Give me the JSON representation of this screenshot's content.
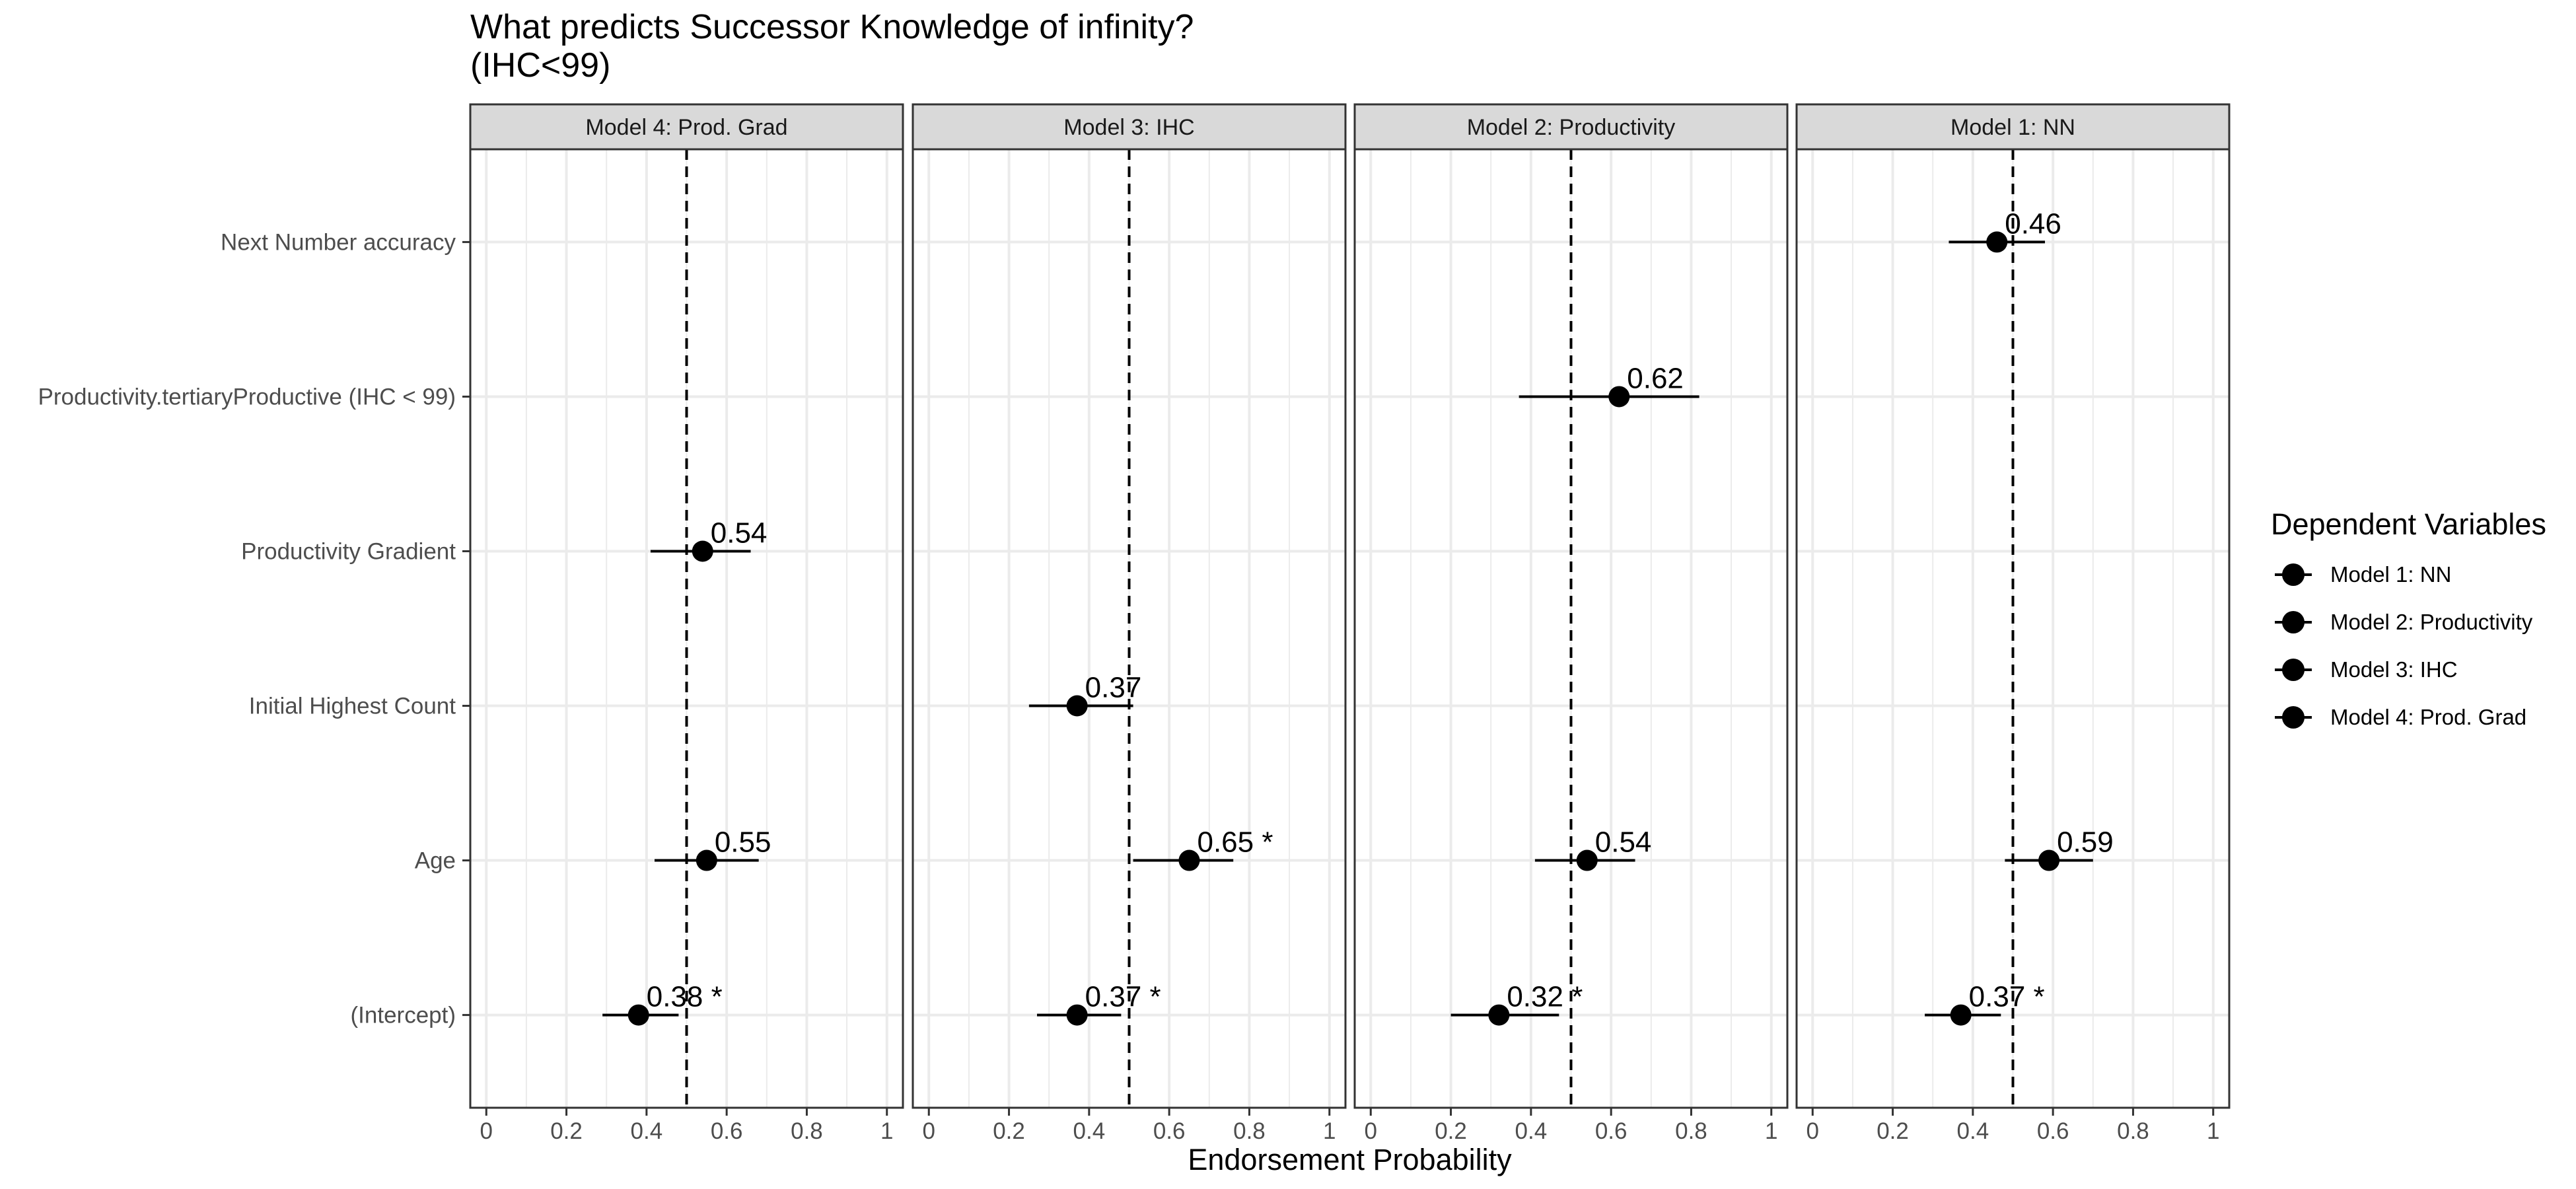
{
  "chart_data": {
    "type": "scatter",
    "title": "What predicts Successor Knowledge of infinity?",
    "subtitle": "(IHC<99)",
    "xlabel": "Endorsement Probability",
    "ylabel": "",
    "xlim": [
      -0.04,
      1.04
    ],
    "xticks": [
      0,
      0.2,
      0.4,
      0.6,
      0.8,
      1
    ],
    "xtick_labels": [
      "0",
      "0.2",
      "0.4",
      "0.6",
      "0.8",
      "1"
    ],
    "reference_line_x": 0.5,
    "grid": true,
    "categories": [
      "Next Number accuracy",
      "Productivity.tertiaryProductive (IHC < 99)",
      "Productivity Gradient",
      "Initial Highest Count",
      "Age",
      "(Intercept)"
    ],
    "panels": [
      {
        "name": "Model 4: Prod. Grad",
        "points": [
          {
            "category": "Productivity Gradient",
            "estimate": 0.54,
            "low": 0.41,
            "high": 0.66,
            "label": "0.54"
          },
          {
            "category": "Age",
            "estimate": 0.55,
            "low": 0.42,
            "high": 0.68,
            "label": "0.55"
          },
          {
            "category": "(Intercept)",
            "estimate": 0.38,
            "low": 0.29,
            "high": 0.48,
            "label": "0.38 *"
          }
        ]
      },
      {
        "name": "Model 3: IHC",
        "points": [
          {
            "category": "Initial Highest Count",
            "estimate": 0.37,
            "low": 0.25,
            "high": 0.51,
            "label": "0.37"
          },
          {
            "category": "Age",
            "estimate": 0.65,
            "low": 0.51,
            "high": 0.76,
            "label": "0.65 *"
          },
          {
            "category": "(Intercept)",
            "estimate": 0.37,
            "low": 0.27,
            "high": 0.48,
            "label": "0.37 *"
          }
        ]
      },
      {
        "name": "Model 2: Productivity",
        "points": [
          {
            "category": "Productivity.tertiaryProductive (IHC < 99)",
            "estimate": 0.62,
            "low": 0.37,
            "high": 0.82,
            "label": "0.62"
          },
          {
            "category": "Age",
            "estimate": 0.54,
            "low": 0.41,
            "high": 0.66,
            "label": "0.54"
          },
          {
            "category": "(Intercept)",
            "estimate": 0.32,
            "low": 0.2,
            "high": 0.47,
            "label": "0.32 *"
          }
        ]
      },
      {
        "name": "Model 1: NN",
        "points": [
          {
            "category": "Next Number accuracy",
            "estimate": 0.46,
            "low": 0.34,
            "high": 0.58,
            "label": "0.46"
          },
          {
            "category": "Age",
            "estimate": 0.59,
            "low": 0.48,
            "high": 0.7,
            "label": "0.59"
          },
          {
            "category": "(Intercept)",
            "estimate": 0.37,
            "low": 0.28,
            "high": 0.47,
            "label": "0.37 *"
          }
        ]
      }
    ],
    "legend": {
      "title": "Dependent Variables",
      "placement": "right",
      "items": [
        "Model 1: NN",
        "Model 2: Productivity",
        "Model 3: IHC",
        "Model 4: Prod. Grad"
      ]
    },
    "colors": {
      "point": "#000000",
      "strip_fill": "#d9d9d9",
      "grid": "#ebebeb",
      "panel_border": "#333333"
    }
  }
}
